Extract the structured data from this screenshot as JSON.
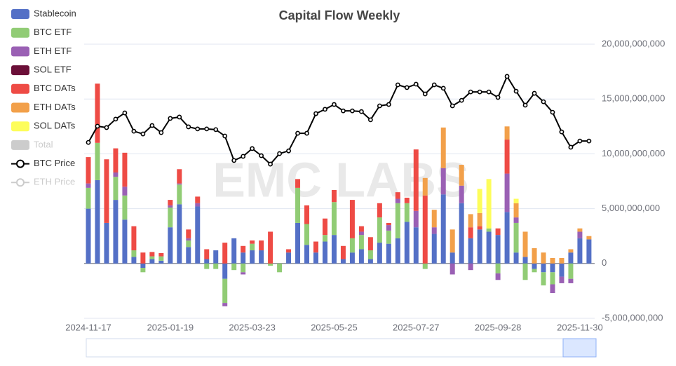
{
  "chart_data": {
    "type": "bar",
    "stacked": true,
    "title": "Capital Flow Weekly",
    "watermark": "EMC LABS",
    "categories": [
      "2024-11-17",
      null,
      null,
      null,
      null,
      null,
      null,
      null,
      null,
      "2025-01-19",
      null,
      null,
      null,
      null,
      null,
      null,
      null,
      null,
      "2025-03-23",
      null,
      null,
      null,
      null,
      null,
      null,
      null,
      null,
      "2025-05-25",
      null,
      null,
      null,
      null,
      null,
      null,
      null,
      null,
      "2025-07-27",
      null,
      null,
      null,
      null,
      null,
      null,
      null,
      null,
      "2025-09-28",
      null,
      null,
      null,
      null,
      null,
      null,
      null,
      null,
      "2025-11-30",
      null
    ],
    "ylim": [
      -5000000000,
      20000000000
    ],
    "yticks": [
      {
        "value": -5000000000,
        "label": "-5,000,000,000"
      },
      0,
      {
        "value": 5000000000,
        "label": "5,000,000,000"
      },
      {
        "value": 10000000000,
        "label": "10,000,000,000"
      },
      {
        "value": 15000000000,
        "label": "15,000,000,000"
      },
      {
        "value": 20000000000,
        "label": "20,000,000,000"
      }
    ],
    "y2lim": [
      20000,
      140000
    ],
    "grid": true,
    "legend": "top-left",
    "inactive_legend": [
      "Total",
      "ETH Price"
    ],
    "series": [
      {
        "name": "Stablecoin",
        "color": "#5470c6",
        "values": [
          5000000000.0,
          7600000000.0,
          3700000000.0,
          5800000000.0,
          4000000000.0,
          600000000.0,
          -400000000.0,
          400000000.0,
          250000000.0,
          3300000000.0,
          5400000000.0,
          1500000000.0,
          5200000000.0,
          400000000.0,
          1200000000.0,
          -1400000000.0,
          2300000000.0,
          1000000000.0,
          1200000000.0,
          1200000000.0,
          0,
          0,
          1000000000.0,
          3700000000.0,
          1700000000.0,
          1000000000.0,
          2000000000.0,
          2600000000.0,
          400000000.0,
          1000000000.0,
          1300000000.0,
          400000000.0,
          1900000000.0,
          1800000000.0,
          2300000000.0,
          3800000000.0,
          3300000000.0,
          0,
          2700000000.0,
          6300000000.0,
          1000000000.0,
          5500000000.0,
          2300000000.0,
          3100000000.0,
          2900000000.0,
          2600000000.0,
          4700000000.0,
          1000000000.0,
          600000000.0,
          -500000000.0,
          -800000000.0,
          -800000000.0,
          -1200000000.0,
          1000000000.0,
          2300000000.0,
          2200000000.0
        ]
      },
      {
        "name": "BTC ETF",
        "color": "#91cc75",
        "values": [
          1900000000.0,
          3400000000.0,
          0,
          2100000000.0,
          2200000000.0,
          600000000.0,
          -400000000.0,
          250000000.0,
          400000000.0,
          1800000000.0,
          1800000000.0,
          600000000.0,
          0,
          -500000000.0,
          -500000000.0,
          -2200000000.0,
          -600000000.0,
          -800000000.0,
          600000000.0,
          0,
          -200000000.0,
          -800000000.0,
          0,
          3200000000.0,
          1900000000.0,
          0,
          600000000.0,
          3000000000.0,
          0,
          1300000000.0,
          1300000000.0,
          800000000.0,
          2300000000.0,
          1200000000.0,
          3200000000.0,
          1700000000.0,
          0,
          -500000000.0,
          0,
          0,
          0,
          0,
          0,
          0,
          300000000.0,
          -900000000.0,
          0,
          2700000000.0,
          -1500000000.0,
          -300000000.0,
          -1200000000.0,
          -1100000000.0,
          0,
          -1400000000.0,
          0,
          0
        ]
      },
      {
        "name": "ETH ETF",
        "color": "#9a60b4",
        "values": [
          400000000.0,
          0,
          0,
          400000000.0,
          800000000.0,
          0,
          0,
          0,
          0,
          200000000.0,
          100000000.0,
          200000000.0,
          300000000.0,
          0,
          0,
          -300000000.0,
          0,
          -200000000.0,
          0,
          0,
          0,
          0,
          0,
          0,
          0,
          0,
          0,
          0,
          0,
          0,
          300000000.0,
          0,
          0,
          500000000.0,
          400000000.0,
          0,
          1500000000.0,
          0,
          600000000.0,
          2400000000.0,
          -1000000000.0,
          1600000000.0,
          -600000000.0,
          0,
          0,
          -600000000.0,
          3500000000.0,
          500000000.0,
          0,
          0,
          0,
          -800000000.0,
          -600000000.0,
          -400000000.0,
          600000000.0,
          0
        ]
      },
      {
        "name": "SOL ETF",
        "color": "#6b0f38",
        "values": [
          0,
          0,
          0,
          0,
          0,
          0,
          0,
          0,
          0,
          0,
          0,
          0,
          0,
          0,
          0,
          0,
          0,
          0,
          0,
          0,
          0,
          0,
          0,
          0,
          0,
          0,
          0,
          0,
          0,
          0,
          0,
          0,
          0,
          0,
          0,
          0,
          0,
          0,
          0,
          0,
          0,
          0,
          0,
          0,
          0,
          0,
          0,
          0,
          0,
          0,
          0,
          0,
          0,
          0,
          0,
          0
        ]
      },
      {
        "name": "BTC DATs",
        "color": "#ee4b45",
        "values": [
          2400000000.0,
          5400000000.0,
          5800000000.0,
          2200000000.0,
          3100000000.0,
          2200000000.0,
          1000000000.0,
          400000000.0,
          300000000.0,
          500000000.0,
          1300000000.0,
          800000000.0,
          600000000.0,
          900000000.0,
          0,
          1900000000.0,
          0,
          600000000.0,
          300000000.0,
          900000000.0,
          2900000000.0,
          0,
          300000000.0,
          800000000.0,
          1700000000.0,
          1000000000.0,
          1500000000.0,
          1100000000.0,
          1200000000.0,
          3500000000.0,
          500000000.0,
          1200000000.0,
          1300000000.0,
          200000000.0,
          600000000.0,
          500000000.0,
          5600000000.0,
          6200000000.0,
          0,
          0,
          0,
          0,
          1000000000.0,
          300000000.0,
          0,
          600000000.0,
          3100000000.0,
          0,
          0,
          0,
          0,
          0,
          0,
          0,
          0,
          0
        ]
      },
      {
        "name": "ETH DATs",
        "color": "#f2a04a",
        "values": [
          0,
          0,
          0,
          0,
          0,
          0,
          0,
          0,
          0,
          0,
          0,
          0,
          0,
          0,
          0,
          0,
          0,
          0,
          0,
          0,
          0,
          0,
          0,
          0,
          0,
          0,
          0,
          0,
          0,
          0,
          0,
          0,
          0,
          0,
          0,
          0,
          0,
          1600000000.0,
          1600000000.0,
          3700000000.0,
          2100000000.0,
          1900000000.0,
          1200000000.0,
          1200000000.0,
          0,
          0,
          1200000000.0,
          1300000000.0,
          2300000000.0,
          1400000000.0,
          1000000000.0,
          500000000.0,
          500000000.0,
          300000000.0,
          300000000.0,
          300000000.0
        ]
      },
      {
        "name": "SOL DATs",
        "color": "#fdfd5a",
        "values": [
          0,
          0,
          0,
          0,
          0,
          0,
          0,
          0,
          0,
          0,
          0,
          0,
          0,
          0,
          0,
          0,
          0,
          0,
          0,
          0,
          0,
          0,
          0,
          0,
          0,
          0,
          0,
          0,
          0,
          0,
          0,
          0,
          0,
          0,
          0,
          0,
          0,
          0,
          0,
          0,
          0,
          0,
          0,
          2200000000.0,
          4500000000.0,
          0,
          0,
          400000000.0,
          0,
          0,
          0,
          0,
          0,
          0,
          0,
          0
        ]
      },
      {
        "name": "BTC Price",
        "type": "line",
        "axis": "y2",
        "color": "#000000",
        "values": [
          97000,
          104100,
          103500,
          107200,
          109900,
          101900,
          100700,
          104400,
          101300,
          107500,
          108100,
          103800,
          102900,
          102900,
          102600,
          99800,
          89100,
          90900,
          94300,
          91200,
          87500,
          92100,
          93300,
          101000,
          101000,
          109600,
          111500,
          113600,
          110800,
          110800,
          110500,
          106900,
          113000,
          113600,
          122200,
          121000,
          122500,
          118200,
          122200,
          120700,
          113000,
          115400,
          119100,
          119100,
          119100,
          116700,
          125900,
          119400,
          113300,
          118500,
          114800,
          110200,
          101600,
          94900,
          97600,
          97600
        ]
      }
    ]
  }
}
